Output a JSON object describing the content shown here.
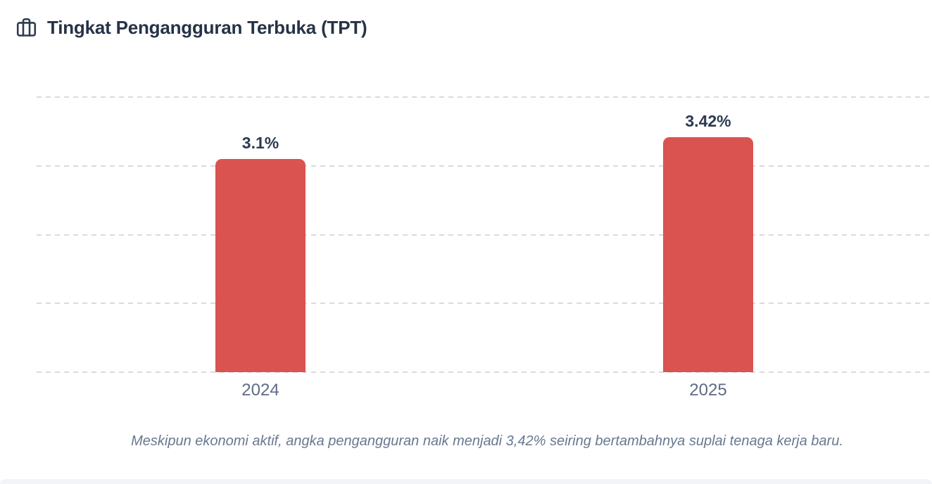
{
  "header": {
    "title": "Tingkat Pengangguran Terbuka (TPT)",
    "icon": "briefcase-icon"
  },
  "chart_data": {
    "type": "bar",
    "title": "Tingkat Pengangguran Terbuka (TPT)",
    "categories": [
      "2024",
      "2025"
    ],
    "values": [
      3.1,
      3.42
    ],
    "value_labels": [
      "3.1%",
      "3.42%"
    ],
    "unit": "%",
    "xlabel": "",
    "ylabel": "",
    "ylim": [
      0,
      4.29
    ],
    "grid_step": 1,
    "grid": true,
    "legend": false,
    "bar_color": "#db5350",
    "gridline_color": "#d8dadd",
    "value_label_color": "#2c3a52",
    "tick_label_color": "#5e6c83"
  },
  "caption": "Meskipun ekonomi aktif, angka pengangguran naik menjadi 3,42% seiring bertambahnya suplai tenaga kerja baru.",
  "colors": {
    "title": "#263247",
    "caption": "#69788f",
    "next_section_bg": "#f2f4f7"
  }
}
